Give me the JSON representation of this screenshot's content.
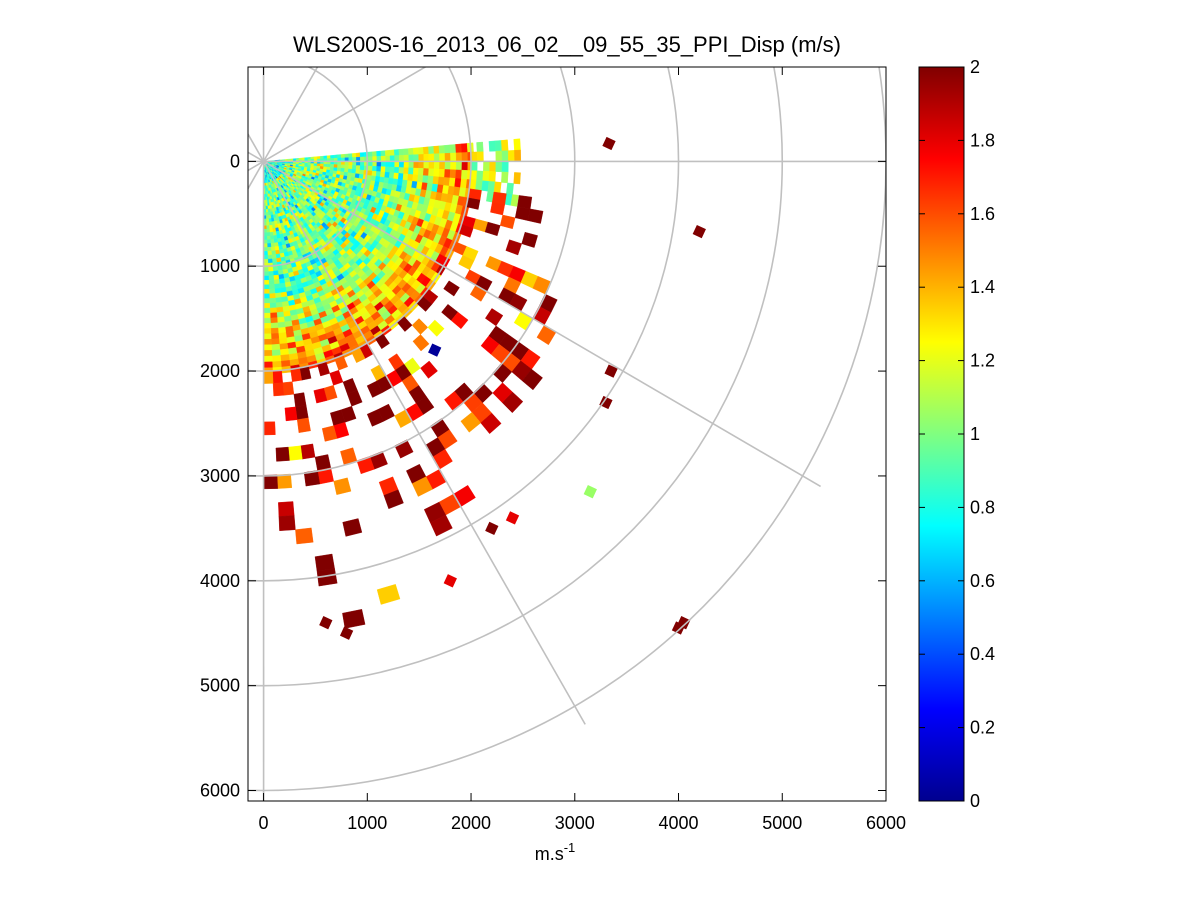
{
  "chart_data": {
    "type": "heatmap",
    "subtype": "polar-ppi",
    "title": "WLS200S-16_2013_06_02__09_55_35_PPI_Disp (m/s)",
    "xlabel": "m.s",
    "xlabel_superscript": "-1",
    "ylabel": "",
    "xlim": [
      -150,
      6000
    ],
    "ylim": [
      6100,
      -900
    ],
    "y_direction": "reversed",
    "x_ticks": [
      0,
      1000,
      2000,
      3000,
      4000,
      5000,
      6000
    ],
    "x_tick_labels": [
      "0",
      "1000",
      "2000",
      "3000",
      "4000",
      "5000",
      "6000"
    ],
    "y_ticks": [
      0,
      1000,
      2000,
      3000,
      4000,
      5000,
      6000
    ],
    "y_tick_labels": [
      "0",
      "1000",
      "2000",
      "3000",
      "4000",
      "5000",
      "6000"
    ],
    "polar_grid": {
      "radii": [
        1000,
        2000,
        3000,
        4000,
        5000,
        6000
      ],
      "spoke_angles_deg": [
        0,
        30,
        60,
        90,
        -30,
        -60
      ]
    },
    "colorbar": {
      "colormap": "jet",
      "min": 0,
      "max": 2,
      "ticks": [
        0,
        0.2,
        0.4,
        0.6,
        0.8,
        1,
        1.2,
        1.4,
        1.6,
        1.8,
        2
      ],
      "tick_labels": [
        "0",
        "0.2",
        "0.4",
        "0.6",
        "0.8",
        "1",
        "1.2",
        "1.4",
        "1.6",
        "1.8",
        "2"
      ]
    },
    "scan": {
      "origin": [
        0,
        0
      ],
      "azimuth_start_deg": -5,
      "azimuth_end_deg": 90,
      "bin_count_radial": 60,
      "bin_count_azimuth": 38,
      "dense_range_max": 2000,
      "sparse_range_max": 4700,
      "near_mean": 1.0,
      "near_spread": 0.35,
      "far_mean": 1.75,
      "far_spread": 0.45,
      "fill_ratio_far": 0.38
    },
    "isolated_cells": [
      {
        "x": 3330,
        "y": -170,
        "value": 2.0
      },
      {
        "x": 4200,
        "y": 670,
        "value": 2.0
      },
      {
        "x": 3350,
        "y": 2000,
        "value": 2.0
      },
      {
        "x": 3300,
        "y": 2300,
        "value": 2.0
      },
      {
        "x": 3150,
        "y": 3150,
        "value": 1.05
      },
      {
        "x": 4050,
        "y": 4400,
        "value": 2.0
      },
      {
        "x": 4000,
        "y": 4450,
        "value": 2.0
      },
      {
        "x": 1650,
        "y": 1800,
        "value": 0.05
      },
      {
        "x": 1800,
        "y": 4000,
        "value": 1.8
      },
      {
        "x": 600,
        "y": 4400,
        "value": 2.0
      },
      {
        "x": 800,
        "y": 4500,
        "value": 2.0
      },
      {
        "x": 2400,
        "y": 3400,
        "value": 1.8
      },
      {
        "x": 2200,
        "y": 3500,
        "value": 2.0
      }
    ]
  }
}
